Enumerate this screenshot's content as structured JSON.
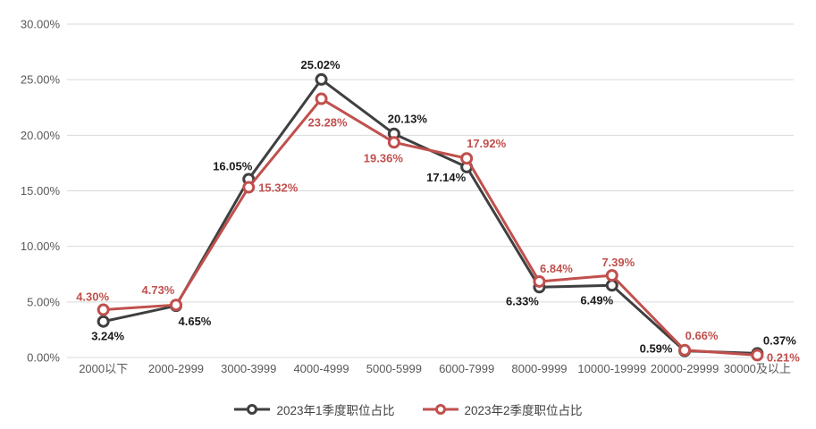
{
  "chart_data": {
    "type": "line",
    "title": "",
    "categories": [
      "2000以下",
      "2000-2999",
      "3000-3999",
      "4000-4999",
      "5000-5999",
      "6000-7999",
      "8000-9999",
      "10000-19999",
      "20000-29999",
      "30000及以上"
    ],
    "series": [
      {
        "name": "2023年1季度职位占比",
        "color": "#3f3f3f",
        "label_color": "#1a1a1a",
        "values": [
          3.24,
          4.65,
          16.05,
          25.02,
          20.13,
          17.14,
          6.33,
          6.49,
          0.59,
          0.37
        ],
        "labels": [
          "3.24%",
          "4.65%",
          "16.05%",
          "25.02%",
          "20.13%",
          "17.14%",
          "6.33%",
          "6.49%",
          "0.59%",
          "0.37%"
        ],
        "label_offsets": [
          [
            5,
            21
          ],
          [
            21,
            22
          ],
          [
            -18,
            -10
          ],
          [
            -1,
            -12
          ],
          [
            15,
            -12
          ],
          [
            -23,
            16
          ],
          [
            -19,
            20
          ],
          [
            -17,
            21
          ],
          [
            -32,
            2
          ],
          [
            25,
            -10
          ]
        ]
      },
      {
        "name": "2023年2季度职位占比",
        "color": "#c0504d",
        "label_color": "#c0504d",
        "values": [
          4.3,
          4.73,
          15.32,
          23.28,
          19.36,
          17.92,
          6.84,
          7.39,
          0.66,
          0.21
        ],
        "labels": [
          "4.30%",
          "4.73%",
          "15.32%",
          "23.28%",
          "19.36%",
          "17.92%",
          "6.84%",
          "7.39%",
          "0.66%",
          "0.21%"
        ],
        "label_offsets": [
          [
            -12,
            -10
          ],
          [
            -20,
            -12
          ],
          [
            33,
            5
          ],
          [
            7,
            31
          ],
          [
            -12,
            22
          ],
          [
            22,
            -12
          ],
          [
            19,
            -10
          ],
          [
            7,
            -10
          ],
          [
            19,
            -12
          ],
          [
            29,
            7
          ]
        ]
      }
    ],
    "y_ticks": [
      0,
      5,
      10,
      15,
      20,
      25,
      30
    ],
    "y_tick_labels": [
      "0.00%",
      "5.00%",
      "10.00%",
      "15.00%",
      "20.00%",
      "25.00%",
      "30.00%"
    ],
    "ylim": [
      0,
      30
    ],
    "xlabel": "",
    "ylabel": "",
    "grid": true,
    "legend_position": "bottom",
    "marker": "circle-hollow"
  },
  "colors": {
    "background": "#ffffff",
    "gridline": "#d9d9d9",
    "axis_text": "#595959",
    "legend_text": "#404040",
    "series1": "#3f3f3f",
    "series2": "#c0504d"
  }
}
